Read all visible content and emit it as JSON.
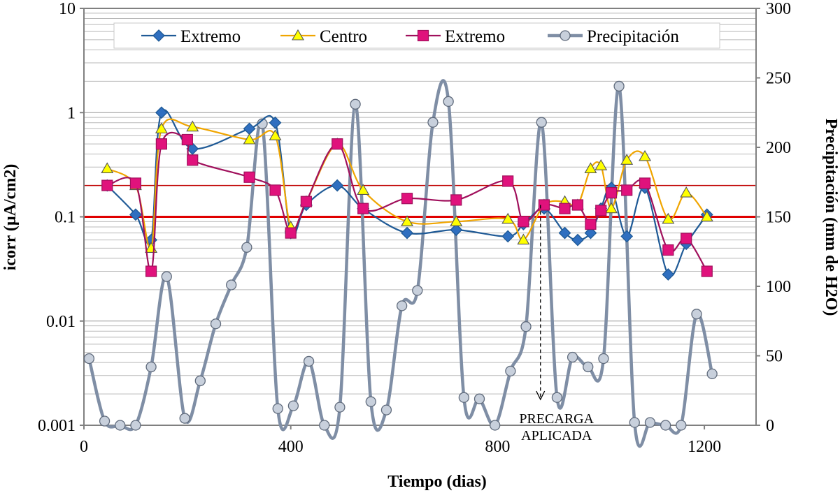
{
  "chart_data": {
    "type": "line",
    "xlabel": "Tiempo (dias)",
    "ylabel": "icorr (µA/cm2)",
    "y2label": "Precipitación (mm de H2O)",
    "xlim": [
      0,
      1300
    ],
    "ylim": [
      0.001,
      10
    ],
    "yscale": "log",
    "y2lim": [
      0,
      300
    ],
    "x_ticks": [
      "0",
      "400",
      "800",
      "1200"
    ],
    "y_ticks": [
      "0.001",
      "0.01",
      "0.1",
      "1",
      "10"
    ],
    "y2_ticks": [
      "0",
      "50",
      "100",
      "150",
      "200",
      "250",
      "300"
    ],
    "reference_lines": [
      {
        "y": 0.1,
        "color": "#e00000"
      },
      {
        "y": 0.2,
        "color": "#c00000"
      }
    ],
    "legend_position": "top",
    "annotation": {
      "lines": [
        "PRECARGA",
        "APLICADA"
      ],
      "x": 883
    },
    "series": [
      {
        "name": "Extremo",
        "marker": "diamond",
        "color": "#1f5a96",
        "fill": "#2f6fc0",
        "axis": "left",
        "x": [
          45,
          100,
          130,
          150,
          210,
          320,
          370,
          400,
          430,
          490,
          540,
          625,
          720,
          820,
          850,
          890,
          930,
          955,
          980,
          1000,
          1020,
          1050,
          1085,
          1130,
          1165,
          1205
        ],
        "y": [
          0.2,
          0.105,
          0.06,
          1.0,
          0.45,
          0.7,
          0.8,
          0.07,
          0.13,
          0.2,
          0.12,
          0.07,
          0.075,
          0.065,
          0.085,
          0.12,
          0.07,
          0.06,
          0.07,
          0.12,
          0.19,
          0.065,
          0.19,
          0.028,
          0.055,
          0.105
        ]
      },
      {
        "name": "Centro",
        "marker": "triangle",
        "color": "#f0a500",
        "fill": "#ffff00",
        "axis": "left",
        "x": [
          45,
          100,
          130,
          150,
          210,
          320,
          370,
          400,
          430,
          490,
          540,
          625,
          720,
          820,
          850,
          890,
          930,
          955,
          980,
          1000,
          1020,
          1050,
          1085,
          1130,
          1165,
          1205
        ],
        "y": [
          0.29,
          0.2,
          0.05,
          0.7,
          0.73,
          0.55,
          0.6,
          0.08,
          0.14,
          0.5,
          0.18,
          0.09,
          0.09,
          0.095,
          0.06,
          0.13,
          0.14,
          0.13,
          0.29,
          0.31,
          0.12,
          0.35,
          0.38,
          0.095,
          0.17,
          0.1
        ]
      },
      {
        "name": "Extremo",
        "marker": "square",
        "color": "#a0105c",
        "fill": "#e0127c",
        "axis": "left",
        "x": [
          45,
          100,
          130,
          150,
          200,
          210,
          320,
          370,
          400,
          430,
          490,
          540,
          625,
          720,
          820,
          850,
          890,
          930,
          955,
          980,
          1000,
          1020,
          1050,
          1085,
          1130,
          1165,
          1205
        ],
        "y": [
          0.2,
          0.21,
          0.03,
          0.5,
          0.55,
          0.35,
          0.24,
          0.18,
          0.07,
          0.14,
          0.5,
          0.12,
          0.15,
          0.145,
          0.22,
          0.09,
          0.13,
          0.12,
          0.13,
          0.085,
          0.115,
          0.17,
          0.18,
          0.21,
          0.048,
          0.062,
          0.03
        ]
      },
      {
        "name": "Precipitación",
        "marker": "circle",
        "color": "#7f8ea5",
        "fill": "#c8d0dc",
        "axis": "right",
        "x": [
          10,
          40,
          70,
          100,
          130,
          160,
          195,
          225,
          255,
          285,
          315,
          345,
          375,
          405,
          435,
          465,
          495,
          525,
          555,
          585,
          615,
          645,
          675,
          705,
          735,
          765,
          795,
          825,
          855,
          885,
          915,
          945,
          975,
          1005,
          1035,
          1065,
          1095,
          1125,
          1155,
          1185,
          1215
        ],
        "y": [
          48,
          3,
          0,
          0,
          42,
          107,
          5,
          32,
          73,
          101,
          128,
          217,
          12,
          14,
          46,
          0,
          13,
          231,
          17,
          11,
          86,
          97,
          218,
          233,
          20,
          19,
          0,
          39,
          71,
          218,
          20,
          49,
          42,
          48,
          244,
          2,
          2,
          0,
          0,
          80,
          37
        ]
      }
    ]
  }
}
